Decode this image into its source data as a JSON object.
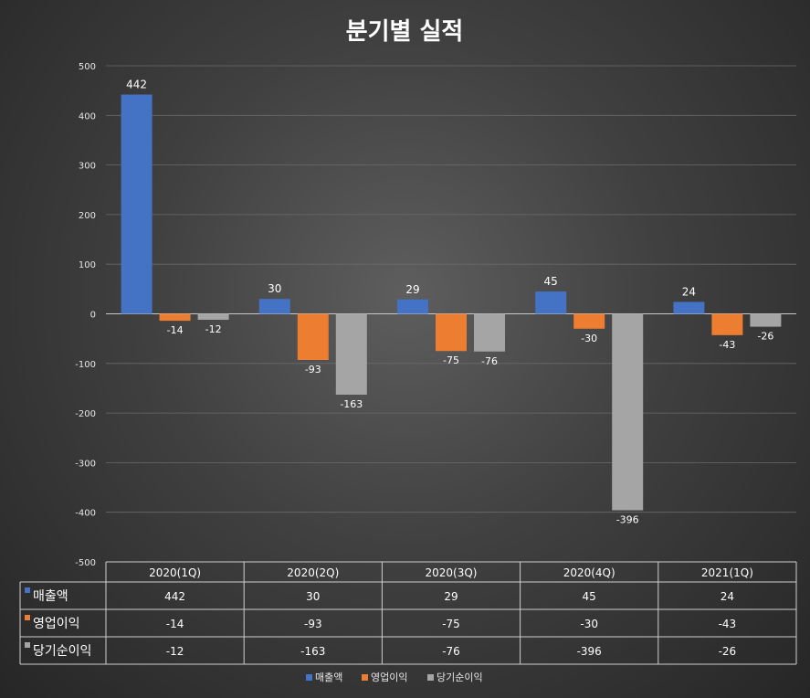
{
  "chart_data": {
    "type": "bar",
    "title": "분기별 실적",
    "categories": [
      "2020(1Q)",
      "2020(2Q)",
      "2020(3Q)",
      "2020(4Q)",
      "2021(1Q)"
    ],
    "series": [
      {
        "name": "매출액",
        "color": "#4472c4",
        "values": [
          442,
          30,
          29,
          45,
          24
        ]
      },
      {
        "name": "영업이익",
        "color": "#ed7d31",
        "values": [
          -14,
          -93,
          -75,
          -30,
          -43
        ]
      },
      {
        "name": "당기순이익",
        "color": "#a5a5a5",
        "values": [
          -12,
          -163,
          -76,
          -396,
          -26
        ]
      }
    ],
    "ylim": [
      -500,
      500
    ],
    "yticks": [
      500,
      400,
      300,
      200,
      100,
      0,
      -100,
      -200,
      -300,
      -400,
      -500
    ],
    "grid": true,
    "legend": "bottom",
    "data_table": true
  }
}
